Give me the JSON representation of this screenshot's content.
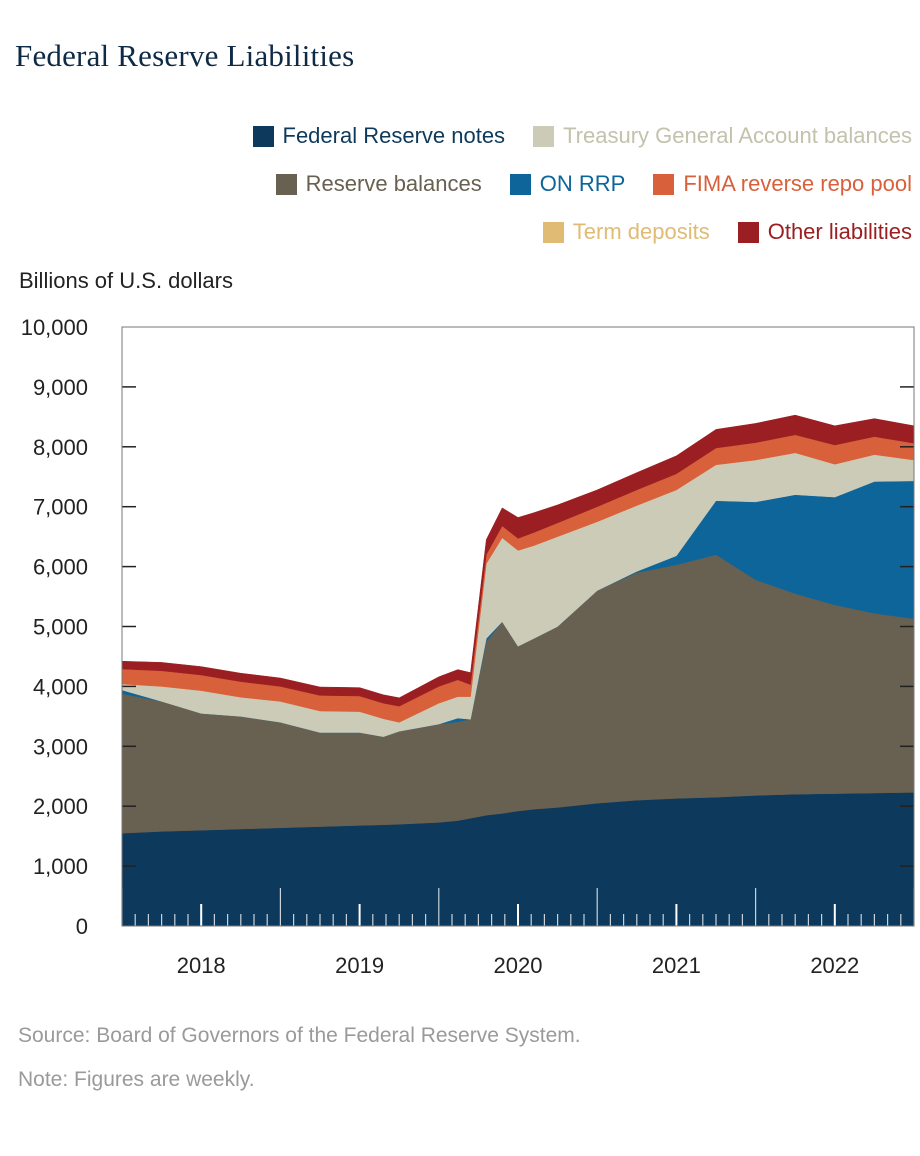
{
  "title": "Federal Reserve Liabilities",
  "source": "Source: Board of Governors of the Federal Reserve System.",
  "note": "Note: Figures are weekly.",
  "legend_rows": [
    [
      {
        "label": "Federal Reserve notes",
        "color": "#0d3a5c",
        "series": "notes"
      },
      {
        "label": "Treasury General Account balances",
        "color": "#cbcbb8",
        "series": "tga"
      }
    ],
    [
      {
        "label": "Reserve balances",
        "color": "#686050",
        "series": "reserves"
      },
      {
        "label": "ON RRP",
        "color": "#0e6599",
        "series": "onrrp"
      },
      {
        "label": "FIMA reverse repo pool",
        "color": "#d8603a",
        "series": "fima"
      }
    ],
    [
      {
        "label": "Term deposits",
        "color": "#e0bb74",
        "series": "term"
      },
      {
        "label": "Other liabilities",
        "color": "#9b1f22",
        "series": "other"
      }
    ]
  ],
  "chart_data": {
    "type": "area",
    "stacked": true,
    "title": "Federal Reserve Liabilities",
    "ylabel": "Billions of U.S. dollars",
    "xlabel": "",
    "ylim": [
      0,
      10000
    ],
    "xlim": [
      2017.5,
      2022.5
    ],
    "y_ticks": [
      "0",
      "1,000",
      "2,000",
      "3,000",
      "4,000",
      "5,000",
      "6,000",
      "7,000",
      "8,000",
      "9,000",
      "10,000"
    ],
    "y_tick_values": [
      0,
      1000,
      2000,
      3000,
      4000,
      5000,
      6000,
      7000,
      8000,
      9000,
      10000
    ],
    "x_ticks": [
      "2018",
      "2019",
      "2020",
      "2021",
      "2022"
    ],
    "x_tick_values": [
      2018,
      2019,
      2020,
      2021,
      2022
    ],
    "x": [
      2017.5,
      2017.75,
      2018.0,
      2018.25,
      2018.5,
      2018.75,
      2019.0,
      2019.15,
      2019.25,
      2019.5,
      2019.62,
      2019.7,
      2019.8,
      2019.9,
      2020.0,
      2020.1,
      2020.25,
      2020.5,
      2020.75,
      2021.0,
      2021.25,
      2021.5,
      2021.75,
      2022.0,
      2022.25,
      2022.5
    ],
    "series": [
      {
        "name": "Federal Reserve notes",
        "key": "notes",
        "color": "#0d3a5c",
        "values": [
          1550,
          1580,
          1600,
          1620,
          1640,
          1660,
          1680,
          1690,
          1700,
          1730,
          1760,
          1800,
          1850,
          1880,
          1920,
          1950,
          1980,
          2050,
          2100,
          2130,
          2150,
          2180,
          2200,
          2210,
          2220,
          2230
        ]
      },
      {
        "name": "Reserve balances",
        "key": "reserves",
        "color": "#686050",
        "values": [
          2330,
          2170,
          1950,
          1880,
          1760,
          1570,
          1550,
          1470,
          1550,
          1640,
          1650,
          1650,
          2900,
          3200,
          2750,
          2850,
          3020,
          3550,
          3800,
          3900,
          4050,
          3600,
          3350,
          3150,
          3000,
          2900
        ]
      },
      {
        "name": "ON RRP",
        "key": "onrrp",
        "color": "#0e6599",
        "values": [
          60,
          0,
          0,
          0,
          0,
          0,
          0,
          0,
          0,
          0,
          60,
          0,
          50,
          0,
          0,
          0,
          0,
          0,
          20,
          150,
          900,
          1300,
          1650,
          1800,
          2200,
          2300
        ]
      },
      {
        "name": "Treasury General Account balances",
        "key": "tga",
        "color": "#cbcbb8",
        "values": [
          100,
          250,
          380,
          320,
          350,
          360,
          350,
          300,
          150,
          350,
          360,
          380,
          1250,
          1400,
          1600,
          1550,
          1500,
          1150,
          1100,
          1100,
          600,
          700,
          700,
          550,
          450,
          350
        ]
      },
      {
        "name": "Term deposits",
        "key": "term",
        "color": "#e0bb74",
        "values": [
          0,
          0,
          0,
          0,
          0,
          0,
          0,
          0,
          0,
          0,
          0,
          0,
          0,
          0,
          0,
          0,
          0,
          0,
          0,
          0,
          0,
          0,
          0,
          0,
          0,
          0
        ]
      },
      {
        "name": "FIMA reverse repo pool",
        "key": "fima",
        "color": "#d8603a",
        "values": [
          250,
          260,
          260,
          260,
          250,
          260,
          260,
          260,
          270,
          280,
          280,
          200,
          150,
          200,
          200,
          220,
          230,
          250,
          260,
          270,
          280,
          290,
          300,
          320,
          300,
          280
        ]
      },
      {
        "name": "Other liabilities",
        "key": "other",
        "color": "#9b1f22",
        "values": [
          130,
          140,
          140,
          140,
          140,
          140,
          140,
          140,
          140,
          160,
          170,
          200,
          250,
          300,
          350,
          330,
          300,
          280,
          290,
          300,
          310,
          320,
          330,
          320,
          300,
          290
        ]
      }
    ]
  }
}
